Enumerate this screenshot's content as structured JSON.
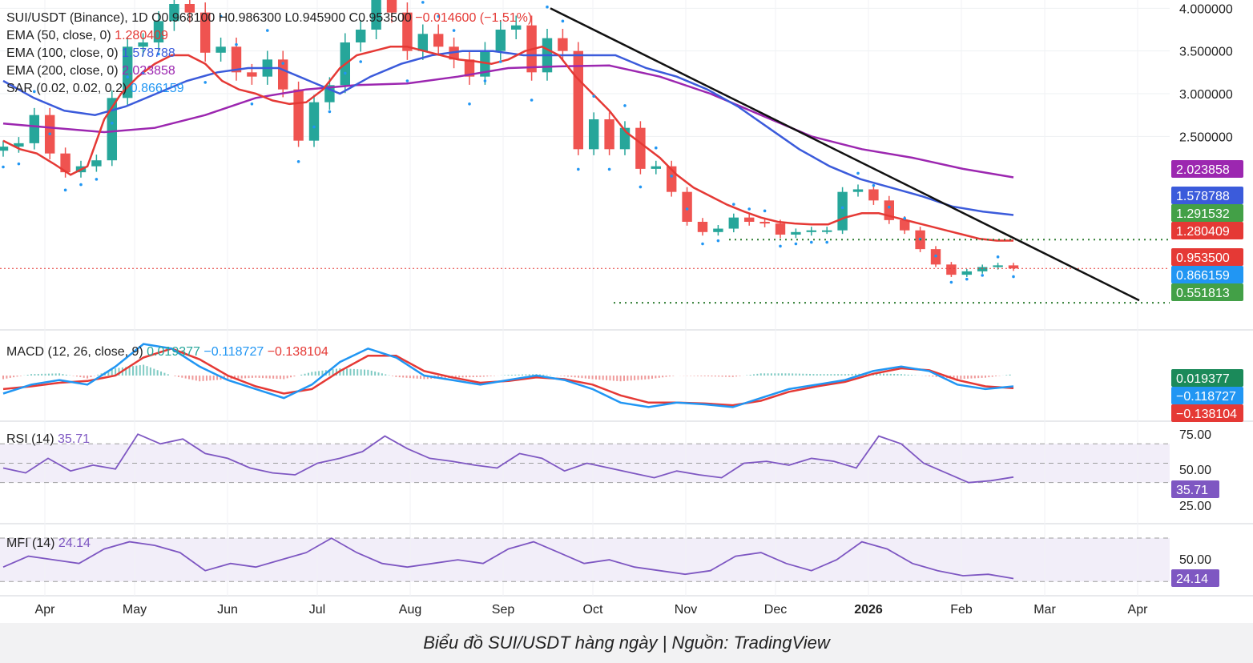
{
  "chart_data": {
    "type": "candlestick",
    "caption": "Biểu đồ SUI/USDT hàng ngày | Nguồn: TradingView",
    "symbol_header": {
      "title": "SUI/USDT (Binance), 1D",
      "open": "O0.968100",
      "high": "H0.986300",
      "low": "L0.945900",
      "close": "C0.953500",
      "change": "−0.014600 (−1.51%)"
    },
    "x_axis": {
      "ticks": [
        "Apr",
        "May",
        "Jun",
        "Jul",
        "Aug",
        "Sep",
        "Oct",
        "Nov",
        "Dec",
        "2026",
        "Feb",
        "Mar",
        "Apr"
      ],
      "bold_tick": "2026"
    },
    "price_axis": {
      "ticks": [
        "4.000000",
        "3.500000",
        "3.000000",
        "2.500000"
      ],
      "range": [
        0.3,
        4.05
      ]
    },
    "price_series": {
      "x": [
        0,
        5,
        10,
        15,
        20,
        25,
        30,
        35,
        40,
        45,
        50,
        55,
        60,
        65,
        70,
        75,
        80,
        85,
        90,
        95,
        100,
        105,
        110,
        115,
        120,
        125,
        130,
        135,
        140,
        145,
        150,
        155,
        160,
        165,
        170,
        175,
        180,
        185,
        190,
        195,
        200,
        205,
        210,
        215,
        220,
        225,
        230,
        235,
        240,
        245,
        250,
        255,
        260,
        265,
        270,
        275,
        280,
        285,
        290,
        295,
        300,
        305,
        310,
        315,
        320,
        325
      ],
      "close": [
        2.38,
        2.42,
        2.75,
        2.3,
        2.08,
        2.15,
        2.22,
        2.95,
        3.55,
        3.6,
        3.85,
        4.05,
        3.95,
        3.48,
        3.55,
        3.25,
        3.2,
        3.4,
        3.05,
        2.45,
        2.9,
        3.1,
        3.6,
        3.75,
        4.1,
        3.95,
        3.5,
        3.7,
        3.55,
        3.4,
        3.2,
        3.5,
        3.75,
        3.8,
        3.25,
        3.65,
        3.5,
        2.35,
        2.7,
        2.35,
        2.6,
        2.12,
        2.15,
        1.85,
        1.5,
        1.38,
        1.42,
        1.55,
        1.5,
        1.48,
        1.35,
        1.38,
        1.4,
        1.4,
        1.85,
        1.88,
        1.75,
        1.52,
        1.4,
        1.18,
        1.0,
        0.88,
        0.92,
        0.97,
        0.99,
        0.9535
      ],
      "ema50": [
        2.45,
        2.35,
        2.3,
        2.18,
        2.05,
        2.15,
        2.7,
        3.0,
        3.2,
        3.35,
        3.45,
        3.45,
        3.35,
        3.15,
        3.05,
        3.0,
        2.92,
        2.88,
        2.9,
        3.05,
        3.3,
        3.45,
        3.5,
        3.55,
        3.55,
        3.5,
        3.45,
        3.4,
        3.38,
        3.35,
        3.4,
        3.5,
        3.55,
        3.45,
        3.2,
        3.0,
        2.8,
        2.55,
        2.4,
        2.25,
        2.05,
        1.9,
        1.8,
        1.7,
        1.62,
        1.55,
        1.5,
        1.48,
        1.47,
        1.47,
        1.55,
        1.6,
        1.6,
        1.55,
        1.5,
        1.45,
        1.4,
        1.35,
        1.3,
        1.28,
        1.28
      ],
      "ema100": [
        3.15,
        2.95,
        2.8,
        2.75,
        2.85,
        3.0,
        3.15,
        3.25,
        3.3,
        3.3,
        3.15,
        3.0,
        3.2,
        3.35,
        3.45,
        3.5,
        3.5,
        3.45,
        3.45,
        3.45,
        3.45,
        3.3,
        3.2,
        3.05,
        2.85,
        2.6,
        2.35,
        2.15,
        2.0,
        1.9,
        1.8,
        1.68,
        1.62,
        1.58
      ],
      "ema200": [
        2.65,
        2.6,
        2.55,
        2.6,
        2.75,
        2.95,
        3.05,
        3.1,
        3.12,
        3.2,
        3.3,
        3.32,
        3.33,
        3.2,
        3.0,
        2.75,
        2.5,
        2.35,
        2.25,
        2.12,
        2.02
      ]
    },
    "trendline": [
      [
        0.687,
        4.0
      ],
      [
        1.422,
        0.58
      ]
    ],
    "sar_dots": "below/above price (parabolic SAR)",
    "levels": [
      {
        "value": 1.2915,
        "style": "dotted",
        "color": "#2e7d32"
      },
      {
        "value": 0.5518,
        "style": "dotted",
        "color": "#2e7d32"
      },
      {
        "value": 0.9535,
        "style": "dotted",
        "color": "#e53935"
      }
    ],
    "indicators": [
      {
        "label": "EMA (50, close, 0)",
        "value": "1.280409",
        "color": "#e53935"
      },
      {
        "label": "EMA (100, close, 0)",
        "value": "1.578788",
        "color": "#3b5bdb"
      },
      {
        "label": "EMA (200, close, 0)",
        "value": "2.023858",
        "color": "#9c27b0"
      },
      {
        "label": "SAR (0.02, 0.02, 0.2)",
        "value": "0.866159",
        "color": "#2196f3"
      }
    ],
    "price_labels": [
      {
        "text": "2.023858",
        "color": "#9c27b0"
      },
      {
        "text": "1.578788",
        "color": "#3b5bdb"
      },
      {
        "text": "1.291532",
        "color": "#43a047"
      },
      {
        "text": "1.280409",
        "color": "#e53935"
      },
      {
        "text": "0.953500",
        "color": "#e53935"
      },
      {
        "text": "0.866159",
        "color": "#2196f3"
      },
      {
        "text": "0.551813",
        "color": "#43a047"
      }
    ],
    "macd": {
      "label": "MACD (12, 26, close, 9)",
      "values": [
        {
          "text": "0.019377",
          "color": "#26a69a"
        },
        {
          "text": "−0.118727",
          "color": "#2196f3"
        },
        {
          "text": "−0.138104",
          "color": "#e53935"
        }
      ],
      "macd_line": [
        -0.2,
        -0.1,
        -0.05,
        -0.1,
        0.1,
        0.35,
        0.3,
        0.1,
        -0.05,
        -0.15,
        -0.25,
        -0.1,
        0.15,
        0.3,
        0.2,
        0.0,
        -0.05,
        -0.1,
        -0.05,
        0.0,
        -0.05,
        -0.15,
        -0.3,
        -0.35,
        -0.3,
        -0.32,
        -0.35,
        -0.25,
        -0.15,
        -0.1,
        -0.05,
        0.05,
        0.1,
        0.05,
        -0.1,
        -0.15,
        -0.12
      ],
      "signal_line": [
        -0.15,
        -0.12,
        -0.08,
        -0.06,
        0.0,
        0.2,
        0.3,
        0.18,
        0.0,
        -0.12,
        -0.2,
        -0.15,
        0.05,
        0.22,
        0.22,
        0.05,
        -0.02,
        -0.08,
        -0.06,
        -0.02,
        -0.04,
        -0.1,
        -0.22,
        -0.3,
        -0.3,
        -0.31,
        -0.33,
        -0.28,
        -0.18,
        -0.12,
        -0.07,
        0.02,
        0.08,
        0.06,
        -0.05,
        -0.12,
        -0.14
      ]
    },
    "rsi": {
      "label": "RSI (14)",
      "value": "35.71",
      "ticks": [
        "75.00",
        "50.00",
        "25.00"
      ],
      "series": [
        45,
        40,
        55,
        42,
        48,
        44,
        80,
        70,
        75,
        60,
        55,
        45,
        40,
        38,
        50,
        55,
        62,
        78,
        65,
        55,
        52,
        48,
        45,
        60,
        55,
        42,
        50,
        45,
        40,
        35,
        42,
        38,
        35,
        50,
        52,
        48,
        55,
        52,
        45,
        78,
        70,
        50,
        40,
        30,
        32,
        35.71
      ]
    },
    "mfi": {
      "label": "MFI (14)",
      "value": "24.14",
      "ticks": [
        "50.00"
      ],
      "series": [
        40,
        55,
        50,
        45,
        65,
        75,
        70,
        60,
        35,
        45,
        40,
        50,
        60,
        80,
        60,
        45,
        40,
        45,
        50,
        45,
        65,
        75,
        60,
        45,
        50,
        40,
        35,
        30,
        35,
        55,
        60,
        45,
        35,
        50,
        75,
        65,
        45,
        35,
        28,
        30,
        24.14
      ]
    }
  }
}
